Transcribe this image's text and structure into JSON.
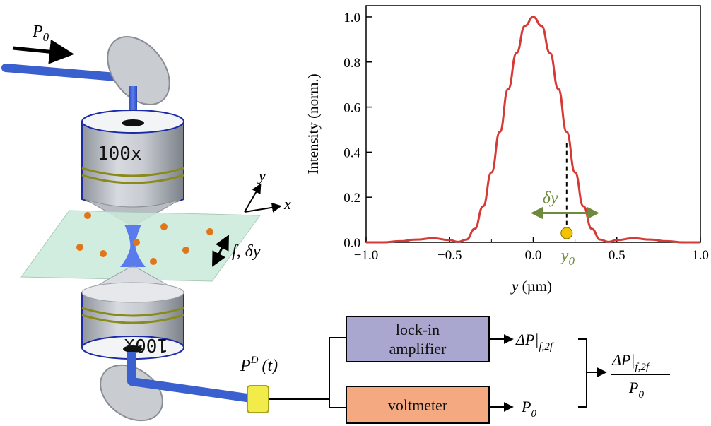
{
  "setup": {
    "input_power_label": "P",
    "input_power_sub": "0",
    "objective_top_label": "100x",
    "objective_bottom_label": "100x",
    "axis_y_label": "y",
    "axis_x_label": "x",
    "modulation_label": "f, δy",
    "detector_label": "P",
    "detector_sup": "D",
    "detector_arg": "(t)"
  },
  "electronics": {
    "lockin_line1": "lock-in",
    "lockin_line2": "amplifier",
    "voltmeter_label": "voltmeter",
    "lockin_output": "ΔP|",
    "lockin_output_sub": "f,2f",
    "voltmeter_output": "P",
    "voltmeter_output_sub": "0",
    "ratio_numerator": "ΔP|",
    "ratio_numerator_sub": "f,2f",
    "ratio_denominator": "P",
    "ratio_denominator_sub": "0"
  },
  "colors": {
    "curve": "#d63a36",
    "annotation": "#6e8a3c",
    "lockin_fill": "#a9a6cf",
    "voltmeter_fill": "#f5a981",
    "beam": "#3a5fcf",
    "particle": "#e0761a",
    "marker": "#f2c400",
    "connector": "#f2ec4a"
  },
  "chart_data": {
    "type": "line",
    "xlabel": "y (µm)",
    "ylabel": "Intensity (norm.)",
    "xlim": [
      -1.0,
      1.0
    ],
    "ylim": [
      0.0,
      1.05
    ],
    "xticks": [
      "−1.0",
      "−0.5",
      "0.0",
      "0.5",
      "1.0"
    ],
    "yticks": [
      "0.0",
      "0.2",
      "0.4",
      "0.6",
      "0.8",
      "1.0"
    ],
    "grid": false,
    "series": [
      {
        "x": [
          -1.0,
          -0.9,
          -0.8,
          -0.7,
          -0.6,
          -0.5,
          -0.45,
          -0.4,
          -0.35,
          -0.3,
          -0.25,
          -0.2,
          -0.15,
          -0.1,
          -0.05,
          0.0,
          0.05,
          0.1,
          0.15,
          0.2,
          0.25,
          0.3,
          0.35,
          0.4,
          0.45,
          0.5,
          0.6,
          0.7,
          0.8,
          0.9,
          1.0
        ],
        "y": [
          0.0,
          0.0,
          0.005,
          0.012,
          0.018,
          0.01,
          0.002,
          0.012,
          0.06,
          0.16,
          0.31,
          0.49,
          0.68,
          0.84,
          0.96,
          1.0,
          0.96,
          0.84,
          0.68,
          0.49,
          0.31,
          0.16,
          0.06,
          0.012,
          0.002,
          0.01,
          0.018,
          0.012,
          0.005,
          0.0,
          0.0
        ]
      }
    ],
    "annotations": {
      "marker_label": "y",
      "marker_label_sub": "0",
      "marker_x": 0.2,
      "dashed_line_top": 0.44,
      "arrow_label": "δy",
      "arrow_x_range": [
        0.0,
        0.38
      ],
      "arrow_y": 0.13
    }
  }
}
